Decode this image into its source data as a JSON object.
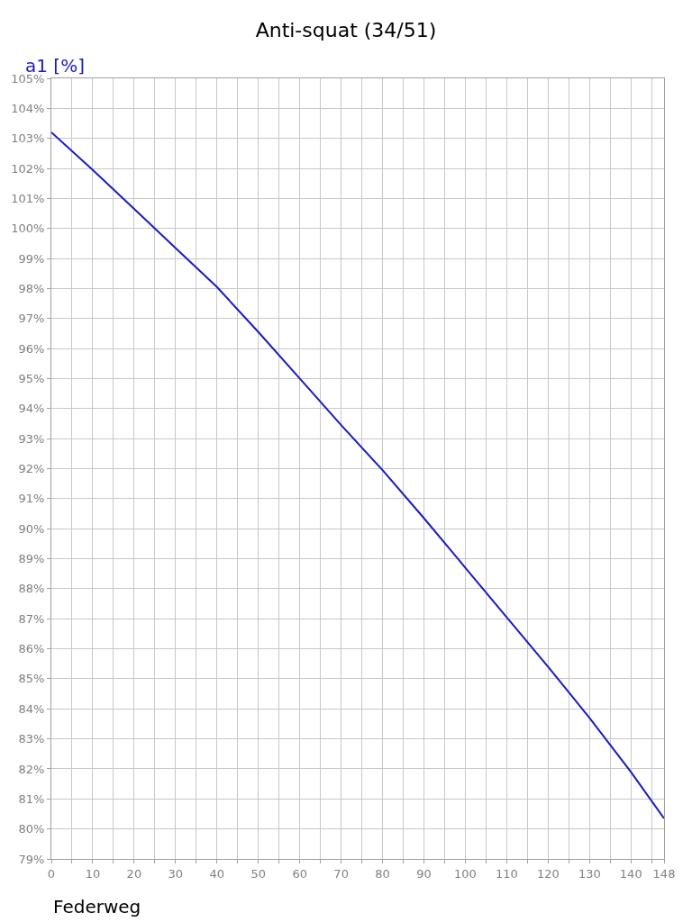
{
  "chart_data": {
    "type": "line",
    "title": "Anti-squat (34/51)",
    "xlabel": "Federweg",
    "ylabel": "a1 [%]",
    "x": [
      0,
      10,
      20,
      30,
      40,
      50,
      60,
      70,
      80,
      90,
      100,
      110,
      120,
      130,
      140,
      148
    ],
    "series": [
      {
        "color": "#1a1ac8",
        "values": [
          103.2,
          101.95,
          100.65,
          99.35,
          98.05,
          96.55,
          95.0,
          93.45,
          91.95,
          90.35,
          88.7,
          87.05,
          85.4,
          83.7,
          81.9,
          80.35
        ]
      }
    ],
    "xlim": [
      0,
      148
    ],
    "xticks": [
      0,
      {
        "value": 5,
        "label": null
      },
      10,
      {
        "value": 15,
        "label": null
      },
      20,
      {
        "value": 25,
        "label": null
      },
      30,
      {
        "value": 35,
        "label": null
      },
      40,
      {
        "value": 45,
        "label": null
      },
      50,
      {
        "value": 55,
        "label": null
      },
      60,
      {
        "value": 65,
        "label": null
      },
      70,
      {
        "value": 75,
        "label": null
      },
      80,
      {
        "value": 85,
        "label": null
      },
      90,
      {
        "value": 95,
        "label": null
      },
      100,
      {
        "value": 105,
        "label": null
      },
      110,
      {
        "value": 115,
        "label": null
      },
      120,
      {
        "value": 125,
        "label": null
      },
      130,
      {
        "value": 135,
        "label": null
      },
      140,
      {
        "value": 145,
        "label": null
      },
      148
    ],
    "ylim": [
      79,
      105
    ],
    "yticks": [
      {
        "value": 79,
        "label": "79%"
      },
      {
        "value": 80,
        "label": "80%"
      },
      {
        "value": 81,
        "label": "81%"
      },
      {
        "value": 82,
        "label": "82%"
      },
      {
        "value": 83,
        "label": "83%"
      },
      {
        "value": 84,
        "label": "84%"
      },
      {
        "value": 85,
        "label": "85%"
      },
      {
        "value": 86,
        "label": "86%"
      },
      {
        "value": 87,
        "label": "87%"
      },
      {
        "value": 88,
        "label": "88%"
      },
      {
        "value": 89,
        "label": "89%"
      },
      {
        "value": 90,
        "label": "90%"
      },
      {
        "value": 91,
        "label": "91%"
      },
      {
        "value": 92,
        "label": "92%"
      },
      {
        "value": 93,
        "label": "93%"
      },
      {
        "value": 94,
        "label": "94%"
      },
      {
        "value": 95,
        "label": "95%"
      },
      {
        "value": 96,
        "label": "96%"
      },
      {
        "value": 97,
        "label": "97%"
      },
      {
        "value": 98,
        "label": "98%"
      },
      {
        "value": 99,
        "label": "99%"
      },
      {
        "value": 100,
        "label": "100%"
      },
      {
        "value": 101,
        "label": "101%"
      },
      {
        "value": 102,
        "label": "102%"
      },
      {
        "value": 103,
        "label": "103%"
      },
      {
        "value": 104,
        "label": "104%"
      },
      {
        "value": 105,
        "label": "105%"
      }
    ],
    "grid": true,
    "marker": "none",
    "line_style": "solid"
  }
}
